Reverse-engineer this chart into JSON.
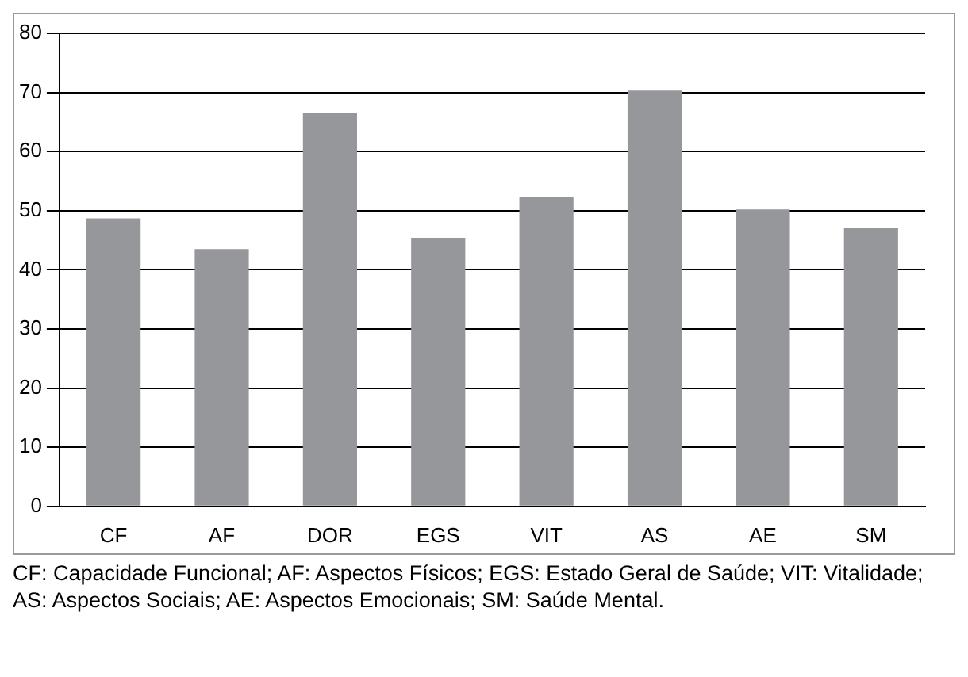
{
  "chart_data": {
    "type": "bar",
    "categories": [
      "CF",
      "AF",
      "DOR",
      "EGS",
      "VIT",
      "AS",
      "AE",
      "SM"
    ],
    "values": [
      48.7,
      43.5,
      66.6,
      45.4,
      52.3,
      70.3,
      50.2,
      47.1
    ],
    "color": "#96979b",
    "ylim": [
      0,
      80
    ],
    "yticks": [
      0,
      10,
      20,
      30,
      40,
      50,
      60,
      70,
      80
    ],
    "grid": "y",
    "legend": false,
    "annotations": [
      "CF: Capacidade Funcional; AF: Aspectos Físicos; EGS: Estado Geral de Saúde; VIT: Vitalidade; AS: Aspectos Sociais; AE: Aspectos Emocionais; SM: Saúde Mental."
    ]
  }
}
